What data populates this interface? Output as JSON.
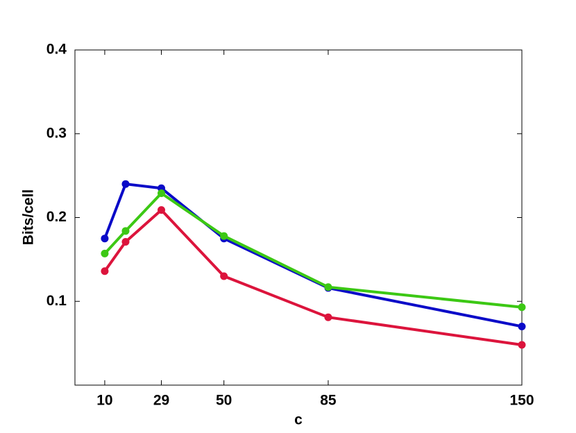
{
  "chart_data": {
    "type": "line",
    "x_label": "c",
    "y_label": "Bits/cell",
    "x": [
      10,
      17,
      29,
      50,
      85,
      150
    ],
    "series": [
      {
        "color": "#0a0ac8",
        "values": [
          0.175,
          0.24,
          0.235,
          0.175,
          0.116,
          0.07
        ]
      },
      {
        "color": "#dc143c",
        "values": [
          0.136,
          0.171,
          0.209,
          0.13,
          0.081,
          0.048
        ]
      },
      {
        "color": "#3cc814",
        "values": [
          0.157,
          0.184,
          0.229,
          0.178,
          0.117,
          0.093
        ]
      }
    ],
    "xlim": [
      0,
      150
    ],
    "ylim": [
      0,
      0.4
    ],
    "xticks": [
      10,
      29,
      50,
      85,
      150
    ],
    "yticks": [
      0.1,
      0.2,
      0.3,
      0.4
    ],
    "grid": false
  }
}
